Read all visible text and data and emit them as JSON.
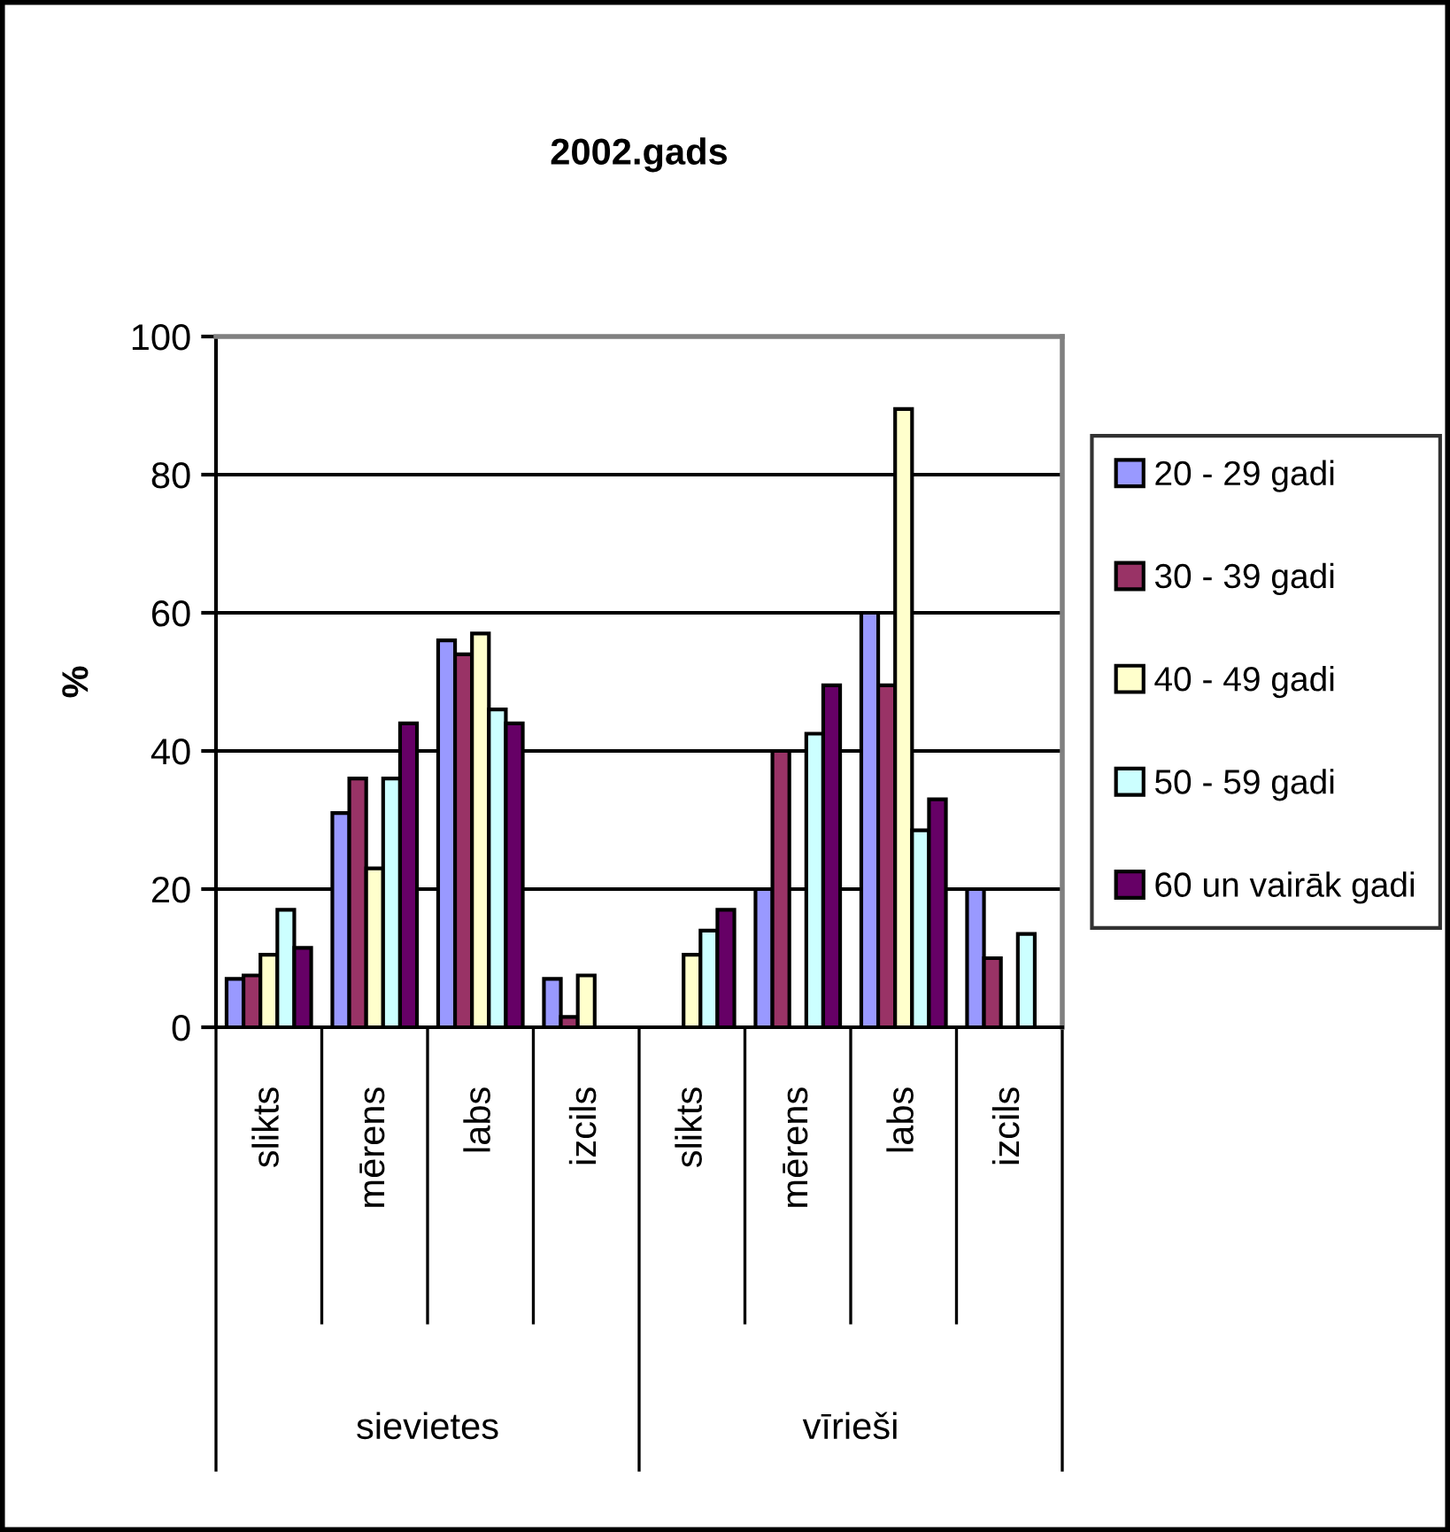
{
  "chart_data": {
    "type": "bar",
    "title": "2002.gads",
    "ylabel": "%",
    "categories": [
      "slikts",
      "mērens",
      "labs",
      "izcils",
      "slikts",
      "mērens",
      "labs",
      "izcils"
    ],
    "annotations": [
      "sievietes",
      "vīrieši"
    ],
    "series": [
      {
        "name": "20 - 29 gadi",
        "color": "#9999ff",
        "values": [
          7,
          31,
          56,
          7,
          null,
          20,
          60,
          20
        ]
      },
      {
        "name": "30 - 39 gadi",
        "color": "#993366",
        "values": [
          7.5,
          36,
          54,
          1.5,
          null,
          40,
          49.5,
          10
        ]
      },
      {
        "name": "40 - 49 gadi",
        "color": "#ffffcc",
        "values": [
          10.5,
          23,
          57,
          7.5,
          10.5,
          null,
          89.5,
          null
        ]
      },
      {
        "name": "50 - 59 gadi",
        "color": "#ccffff",
        "values": [
          17,
          36,
          46,
          null,
          14,
          42.5,
          28.5,
          13.5
        ]
      },
      {
        "name": "60 un vairāk gadi",
        "color": "#660066",
        "values": [
          11.5,
          44,
          44,
          null,
          17,
          49.5,
          33,
          null
        ]
      }
    ],
    "ylim": [
      0,
      100
    ],
    "yticks": [
      0,
      20,
      40,
      60,
      80,
      100
    ],
    "grid": "y",
    "legend": "right"
  }
}
